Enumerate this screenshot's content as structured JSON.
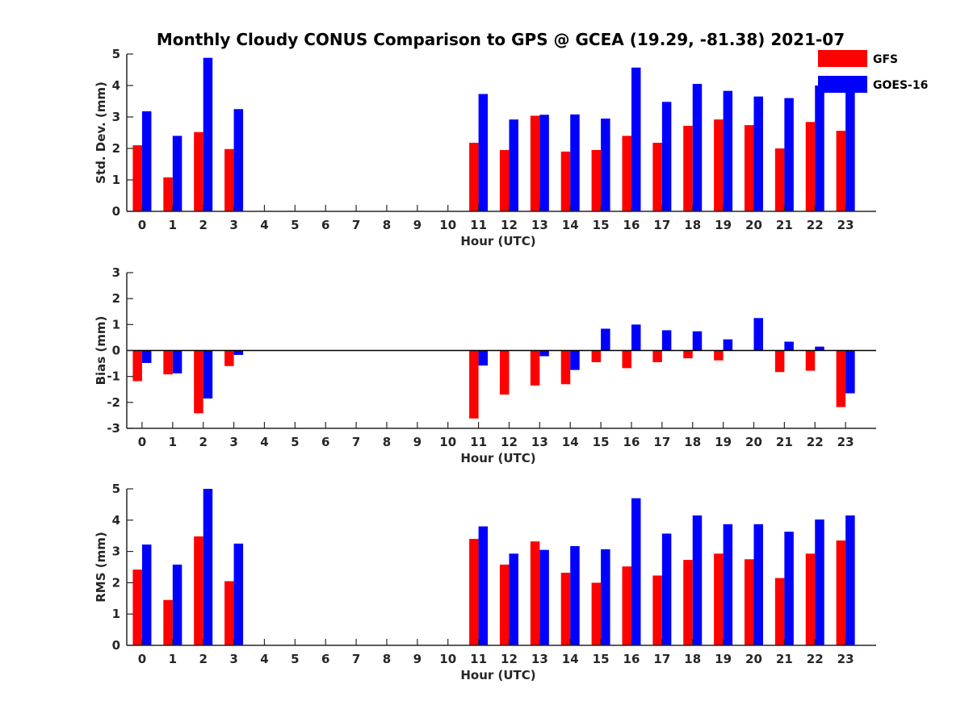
{
  "title": "Monthly Cloudy CONUS Comparison to GPS @ GCEA (19.29, -81.38) 2021-07",
  "legend": {
    "placement": "top-right",
    "entries": [
      {
        "name": "GFS",
        "color": "#ff0000"
      },
      {
        "name": "GOES-16",
        "color": "#0000ff"
      }
    ]
  },
  "chart_data": [
    {
      "type": "bar",
      "xlabel": "Hour (UTC)",
      "ylabel": "Std. Dev. (mm)",
      "ylim": [
        0,
        5
      ],
      "yticks": [
        0,
        1,
        2,
        3,
        4,
        5
      ],
      "categories": [
        "0",
        "1",
        "2",
        "3",
        "4",
        "5",
        "6",
        "7",
        "8",
        "9",
        "10",
        "11",
        "12",
        "13",
        "14",
        "15",
        "16",
        "17",
        "18",
        "19",
        "20",
        "21",
        "22",
        "23"
      ],
      "series": [
        {
          "name": "GFS",
          "color": "#ff0000",
          "values": [
            2.1,
            1.08,
            2.52,
            1.98,
            null,
            null,
            null,
            null,
            null,
            null,
            null,
            2.18,
            1.95,
            3.04,
            1.9,
            1.95,
            2.4,
            2.18,
            2.72,
            2.92,
            2.74,
            2.0,
            2.84,
            2.56
          ]
        },
        {
          "name": "GOES-16",
          "color": "#0000ff",
          "values": [
            3.18,
            2.4,
            4.88,
            3.25,
            null,
            null,
            null,
            null,
            null,
            null,
            null,
            3.73,
            2.92,
            3.07,
            3.08,
            2.95,
            4.57,
            3.48,
            4.05,
            3.83,
            3.65,
            3.6,
            4.0,
            3.85
          ]
        }
      ]
    },
    {
      "type": "bar",
      "xlabel": "Hour (UTC)",
      "ylabel": "Bias (mm)",
      "ylim": [
        -3,
        3
      ],
      "yticks": [
        -3,
        -2,
        -1,
        0,
        1,
        2,
        3
      ],
      "categories": [
        "0",
        "1",
        "2",
        "3",
        "4",
        "5",
        "6",
        "7",
        "8",
        "9",
        "10",
        "11",
        "12",
        "13",
        "14",
        "15",
        "16",
        "17",
        "18",
        "19",
        "20",
        "21",
        "22",
        "23"
      ],
      "series": [
        {
          "name": "GFS",
          "color": "#ff0000",
          "values": [
            -1.18,
            -0.92,
            -2.42,
            -0.6,
            null,
            null,
            null,
            null,
            null,
            null,
            null,
            -2.62,
            -1.7,
            -1.35,
            -1.3,
            -0.45,
            -0.68,
            -0.45,
            -0.3,
            -0.38,
            0.0,
            -0.83,
            -0.78,
            -2.18
          ]
        },
        {
          "name": "GOES-16",
          "color": "#0000ff",
          "values": [
            -0.48,
            -0.88,
            -1.85,
            -0.17,
            null,
            null,
            null,
            null,
            null,
            null,
            null,
            -0.58,
            0.0,
            -0.22,
            -0.75,
            0.84,
            1.0,
            0.78,
            0.74,
            0.43,
            1.25,
            0.34,
            0.15,
            -1.65
          ]
        }
      ]
    },
    {
      "type": "bar",
      "xlabel": "Hour (UTC)",
      "ylabel": "RMS (mm)",
      "ylim": [
        0,
        5
      ],
      "yticks": [
        0,
        1,
        2,
        3,
        4,
        5
      ],
      "categories": [
        "0",
        "1",
        "2",
        "3",
        "4",
        "5",
        "6",
        "7",
        "8",
        "9",
        "10",
        "11",
        "12",
        "13",
        "14",
        "15",
        "16",
        "17",
        "18",
        "19",
        "20",
        "21",
        "22",
        "23"
      ],
      "series": [
        {
          "name": "GFS",
          "color": "#ff0000",
          "values": [
            2.42,
            1.45,
            3.48,
            2.05,
            null,
            null,
            null,
            null,
            null,
            null,
            null,
            3.4,
            2.58,
            3.32,
            2.32,
            2.0,
            2.52,
            2.23,
            2.73,
            2.93,
            2.75,
            2.15,
            2.93,
            3.35
          ]
        },
        {
          "name": "GOES-16",
          "color": "#0000ff",
          "values": [
            3.22,
            2.58,
            5.0,
            3.25,
            null,
            null,
            null,
            null,
            null,
            null,
            null,
            3.8,
            2.93,
            3.05,
            3.17,
            3.07,
            4.7,
            3.57,
            4.15,
            3.87,
            3.87,
            3.63,
            4.02,
            4.15
          ]
        }
      ]
    }
  ]
}
